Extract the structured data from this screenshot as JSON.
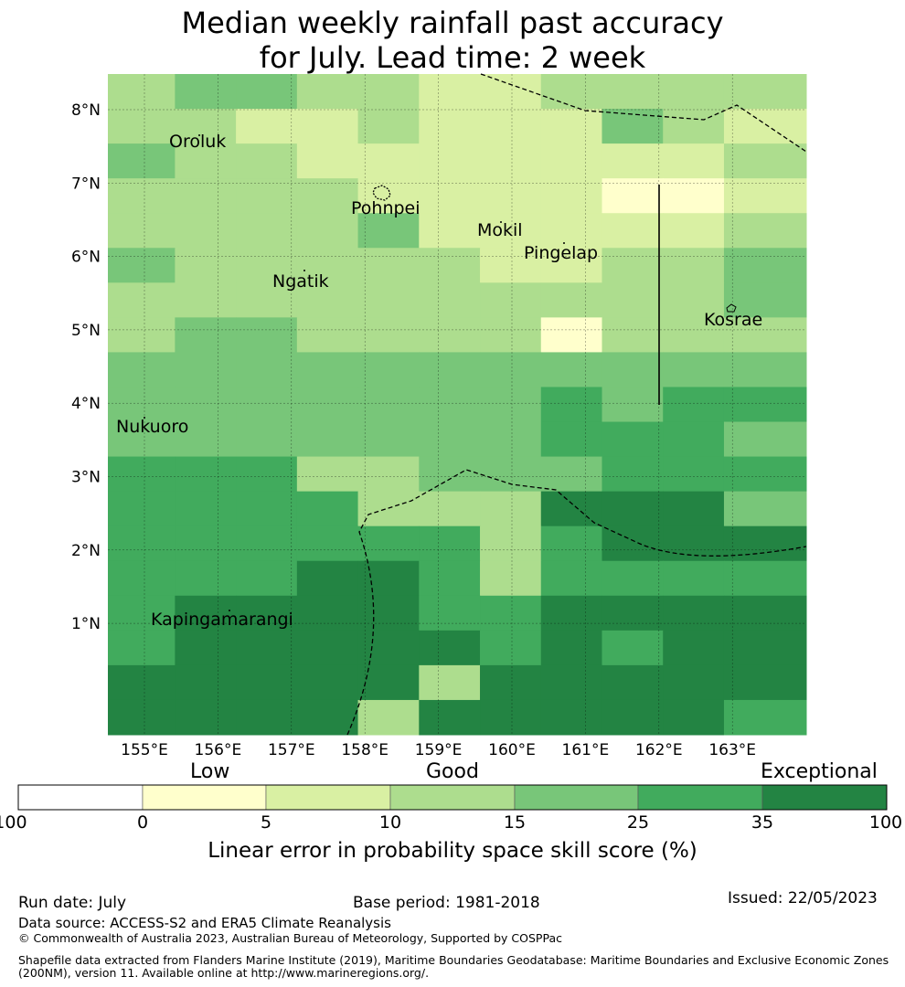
{
  "title_line1": "Median weekly rainfall past accuracy",
  "title_line2": "for July. Lead time: 2 week",
  "map": {
    "lon_labels": [
      "155°E",
      "156°E",
      "157°E",
      "158°E",
      "159°E",
      "160°E",
      "161°E",
      "162°E",
      "163°E"
    ],
    "lat_labels": [
      "8°N",
      "7°N",
      "6°N",
      "5°N",
      "4°N",
      "3°N",
      "2°N",
      "1°N"
    ],
    "places": [
      {
        "name": "Oroluk"
      },
      {
        "name": "Pohnpei"
      },
      {
        "name": "Mokil"
      },
      {
        "name": "Pingelap"
      },
      {
        "name": "Ngatik"
      },
      {
        "name": "Kosrae"
      },
      {
        "name": "Nukuoro"
      },
      {
        "name": "Kapingamarangi"
      }
    ],
    "grid_rows_north_to_south": [
      "34433223333",
      "33223222432",
      "43322222223",
      "33332222112",
      "33334222223",
      "43333322334",
      "33333333334",
      "34433331333",
      "44444444444",
      "44444445455",
      "44444445554",
      "55533444555",
      "55553336664",
      "55555535666",
      "55566535555",
      "56666556666",
      "56666656566",
      "66666366666",
      "66663666665"
    ]
  },
  "colorbar": {
    "classes": [
      "Low",
      "Good",
      "Exceptional"
    ],
    "ticks": [
      "-100",
      "0",
      "5",
      "10",
      "15",
      "25",
      "35",
      "100"
    ],
    "colors": [
      "#ffffff",
      "#ffffcc",
      "#d9f0a3",
      "#addd8e",
      "#78c679",
      "#41ab5d",
      "#238443"
    ],
    "label": "Linear error in probability space skill score (%)"
  },
  "footer": {
    "run_date": "Run date: July",
    "base_period": "Base period: 1981-2018",
    "issued": "Issued: 22/05/2023",
    "data_source": "Data source: ACCESS-S2 and ERA5 Climate Reanalysis",
    "copyright": "© Commonwealth of Australia 2023, Australian Bureau of Meteorology, Supported by COSPPac",
    "shapefile_line1": "Shapefile data extracted from Flanders Marine Institute (2019), Maritime Boundaries Geodatabase: Maritime Boundaries and Exclusive Economic Zones",
    "shapefile_line2": "(200NM), version 11. Available online at http://www.marineregions.org/."
  }
}
